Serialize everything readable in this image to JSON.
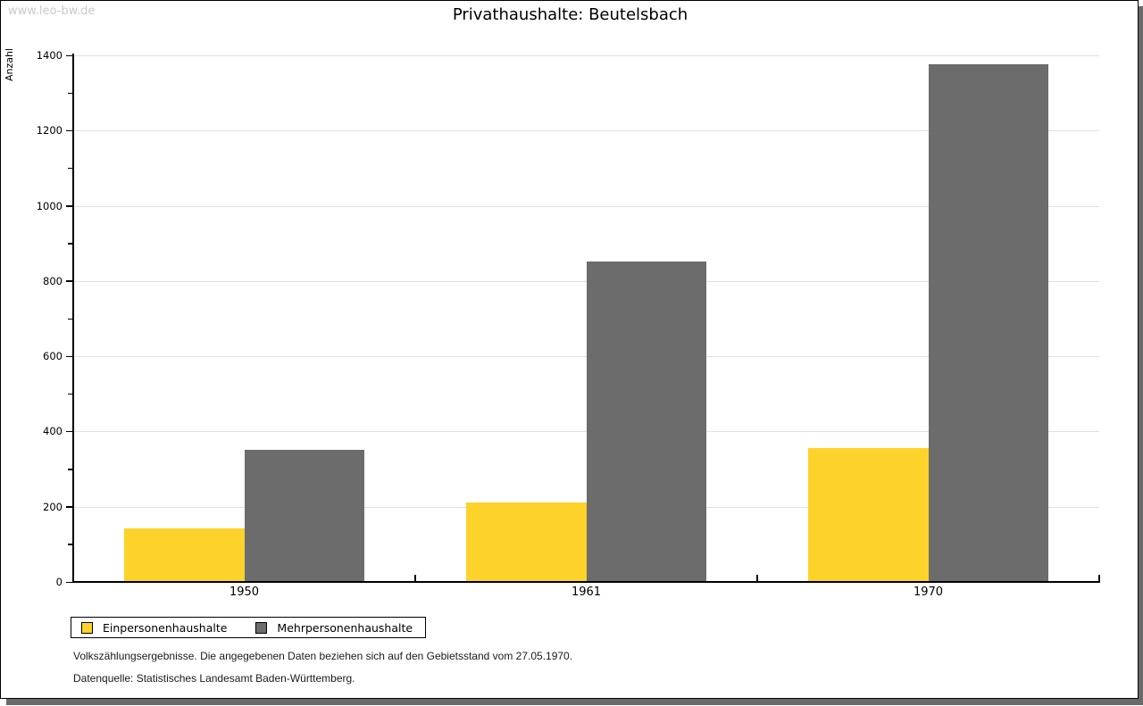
{
  "watermark": "www.leo-bw.de",
  "header": {
    "title": "Privathaushalte: Beutelsbach"
  },
  "footer": {
    "line1": "Volkszählungsergebnisse. Die angegebenen Daten beziehen sich auf den Gebietsstand vom 27.05.1970.",
    "line2": "Datenquelle: Statistisches Landesamt Baden-Württemberg."
  },
  "colors": {
    "series1": "#FDD32B",
    "series2": "#6C6C6C",
    "gridline": "#E0E0E0",
    "axis": "#000000",
    "watermark_gray": "#C9C9C9",
    "frame_shadow": "#6A6A6A"
  },
  "chart_data": {
    "type": "bar",
    "title": "Privathaushalte: Beutelsbach",
    "xlabel": "",
    "ylabel": "Anzahl",
    "categories": [
      "1950",
      "1961",
      "1970"
    ],
    "series": [
      {
        "name": "Einpersonenhaushalte",
        "color": "#FDD32B",
        "values": [
          142,
          212,
          355
        ]
      },
      {
        "name": "Mehrpersonenhaushalte",
        "color": "#6C6C6C",
        "values": [
          351,
          851,
          1376
        ]
      }
    ],
    "ylim": [
      0,
      1400
    ],
    "ytick_step": 200,
    "yminor_step": 100,
    "grid": true,
    "legend_position": "bottom-left"
  }
}
